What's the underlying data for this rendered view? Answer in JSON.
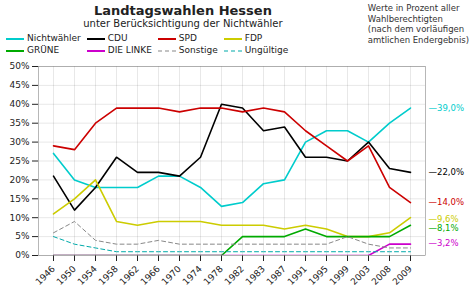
{
  "chart_data": {
    "type": "line",
    "title": "Landtagswahlen Hessen",
    "subtitle": "unter Berücksichtigung der Nichtwähler",
    "annotation": "Werte in Prozent aller\nWahlberechtigten\n(nach dem vorläufigen\namtlichen Endergebnis)",
    "categories": [
      "1946",
      "1950",
      "1954",
      "1958",
      "1962",
      "1966",
      "1970",
      "1974",
      "1978",
      "1982",
      "1983",
      "1987",
      "1991",
      "1995",
      "1999",
      "2003",
      "2008",
      "2009"
    ],
    "series": [
      {
        "name": "Nichtwähler",
        "color": "#00CCCC",
        "line_style": "solid",
        "values": [
          27,
          20,
          18,
          18,
          18,
          21,
          21,
          18,
          13,
          14,
          19,
          20,
          30,
          33,
          33,
          30,
          35,
          39
        ]
      },
      {
        "name": "CDU",
        "color": "#000000",
        "line_style": "solid",
        "values": [
          21,
          12,
          18,
          26,
          22,
          22,
          21,
          26,
          40,
          39,
          33,
          34,
          26,
          26,
          25,
          30,
          23,
          22
        ]
      },
      {
        "name": "SPD",
        "color": "#CC0000",
        "line_style": "solid",
        "values": [
          29,
          28,
          35,
          39,
          39,
          39,
          38,
          39,
          39,
          38,
          39,
          38,
          33,
          29,
          25,
          29,
          18,
          14
        ]
      },
      {
        "name": "FDP",
        "color": "#CCCC00",
        "line_style": "solid",
        "values": [
          11,
          15,
          20,
          9,
          8,
          9,
          9,
          9,
          8,
          8,
          8,
          7,
          8,
          7,
          5,
          5,
          6,
          10
        ]
      },
      {
        "name": "GRÜNE",
        "color": "#00AA00",
        "line_style": "solid",
        "values": [
          0,
          0,
          0,
          0,
          0,
          0,
          0,
          0,
          0,
          5,
          5,
          5,
          7,
          5,
          5,
          5,
          5,
          8
        ]
      },
      {
        "name": "DIE LINKE",
        "color": "#CC00CC",
        "line_style": "solid",
        "values": [
          0,
          0,
          0,
          0,
          0,
          0,
          0,
          0,
          0,
          0,
          0,
          0,
          0,
          0,
          0,
          0,
          3,
          3
        ]
      },
      {
        "name": "Sonstige",
        "color": "#888888",
        "line_style": "dashed",
        "values": [
          6,
          9,
          4,
          3,
          3,
          4,
          3,
          3,
          3,
          3,
          3,
          3,
          3,
          3,
          5,
          3,
          2,
          2
        ]
      },
      {
        "name": "Ungültige",
        "color": "#00AAAA",
        "line_style": "dashed",
        "values": [
          5,
          3,
          2,
          1,
          1,
          1,
          1,
          1,
          1,
          1,
          1,
          1,
          1,
          1,
          1,
          1,
          1,
          1
        ]
      }
    ],
    "end_labels": [
      {
        "value": 39.0,
        "label": "—39,0%",
        "color": "#00CCCC"
      },
      {
        "value": 22.0,
        "label": "—22,0%",
        "color": "#000000"
      },
      {
        "value": 14.0,
        "label": "—14,0%",
        "color": "#CC0000"
      },
      {
        "value": 9.6,
        "label": "—9,6%",
        "color": "#CCCC00"
      },
      {
        "value": 8.1,
        "label": "—8,1%",
        "color": "#00AA00"
      },
      {
        "value": 3.2,
        "label": "—3,2%",
        "color": "#CC00CC"
      }
    ],
    "ylim": [
      0,
      50
    ],
    "yticks": [
      {
        "value": 0,
        "label": "0%"
      },
      {
        "value": 5,
        "label": "5%"
      },
      {
        "value": 10,
        "label": "10%"
      },
      {
        "value": 15,
        "label": "15%"
      },
      {
        "value": 20,
        "label": "20%"
      },
      {
        "value": 25,
        "label": "25%"
      },
      {
        "value": 30,
        "label": "30%"
      },
      {
        "value": 35,
        "label": "35%"
      },
      {
        "value": 40,
        "label": "40%"
      },
      {
        "value": 45,
        "label": "45%"
      },
      {
        "value": 50,
        "label": "50%"
      }
    ],
    "grid": true,
    "legend": "upper left"
  }
}
